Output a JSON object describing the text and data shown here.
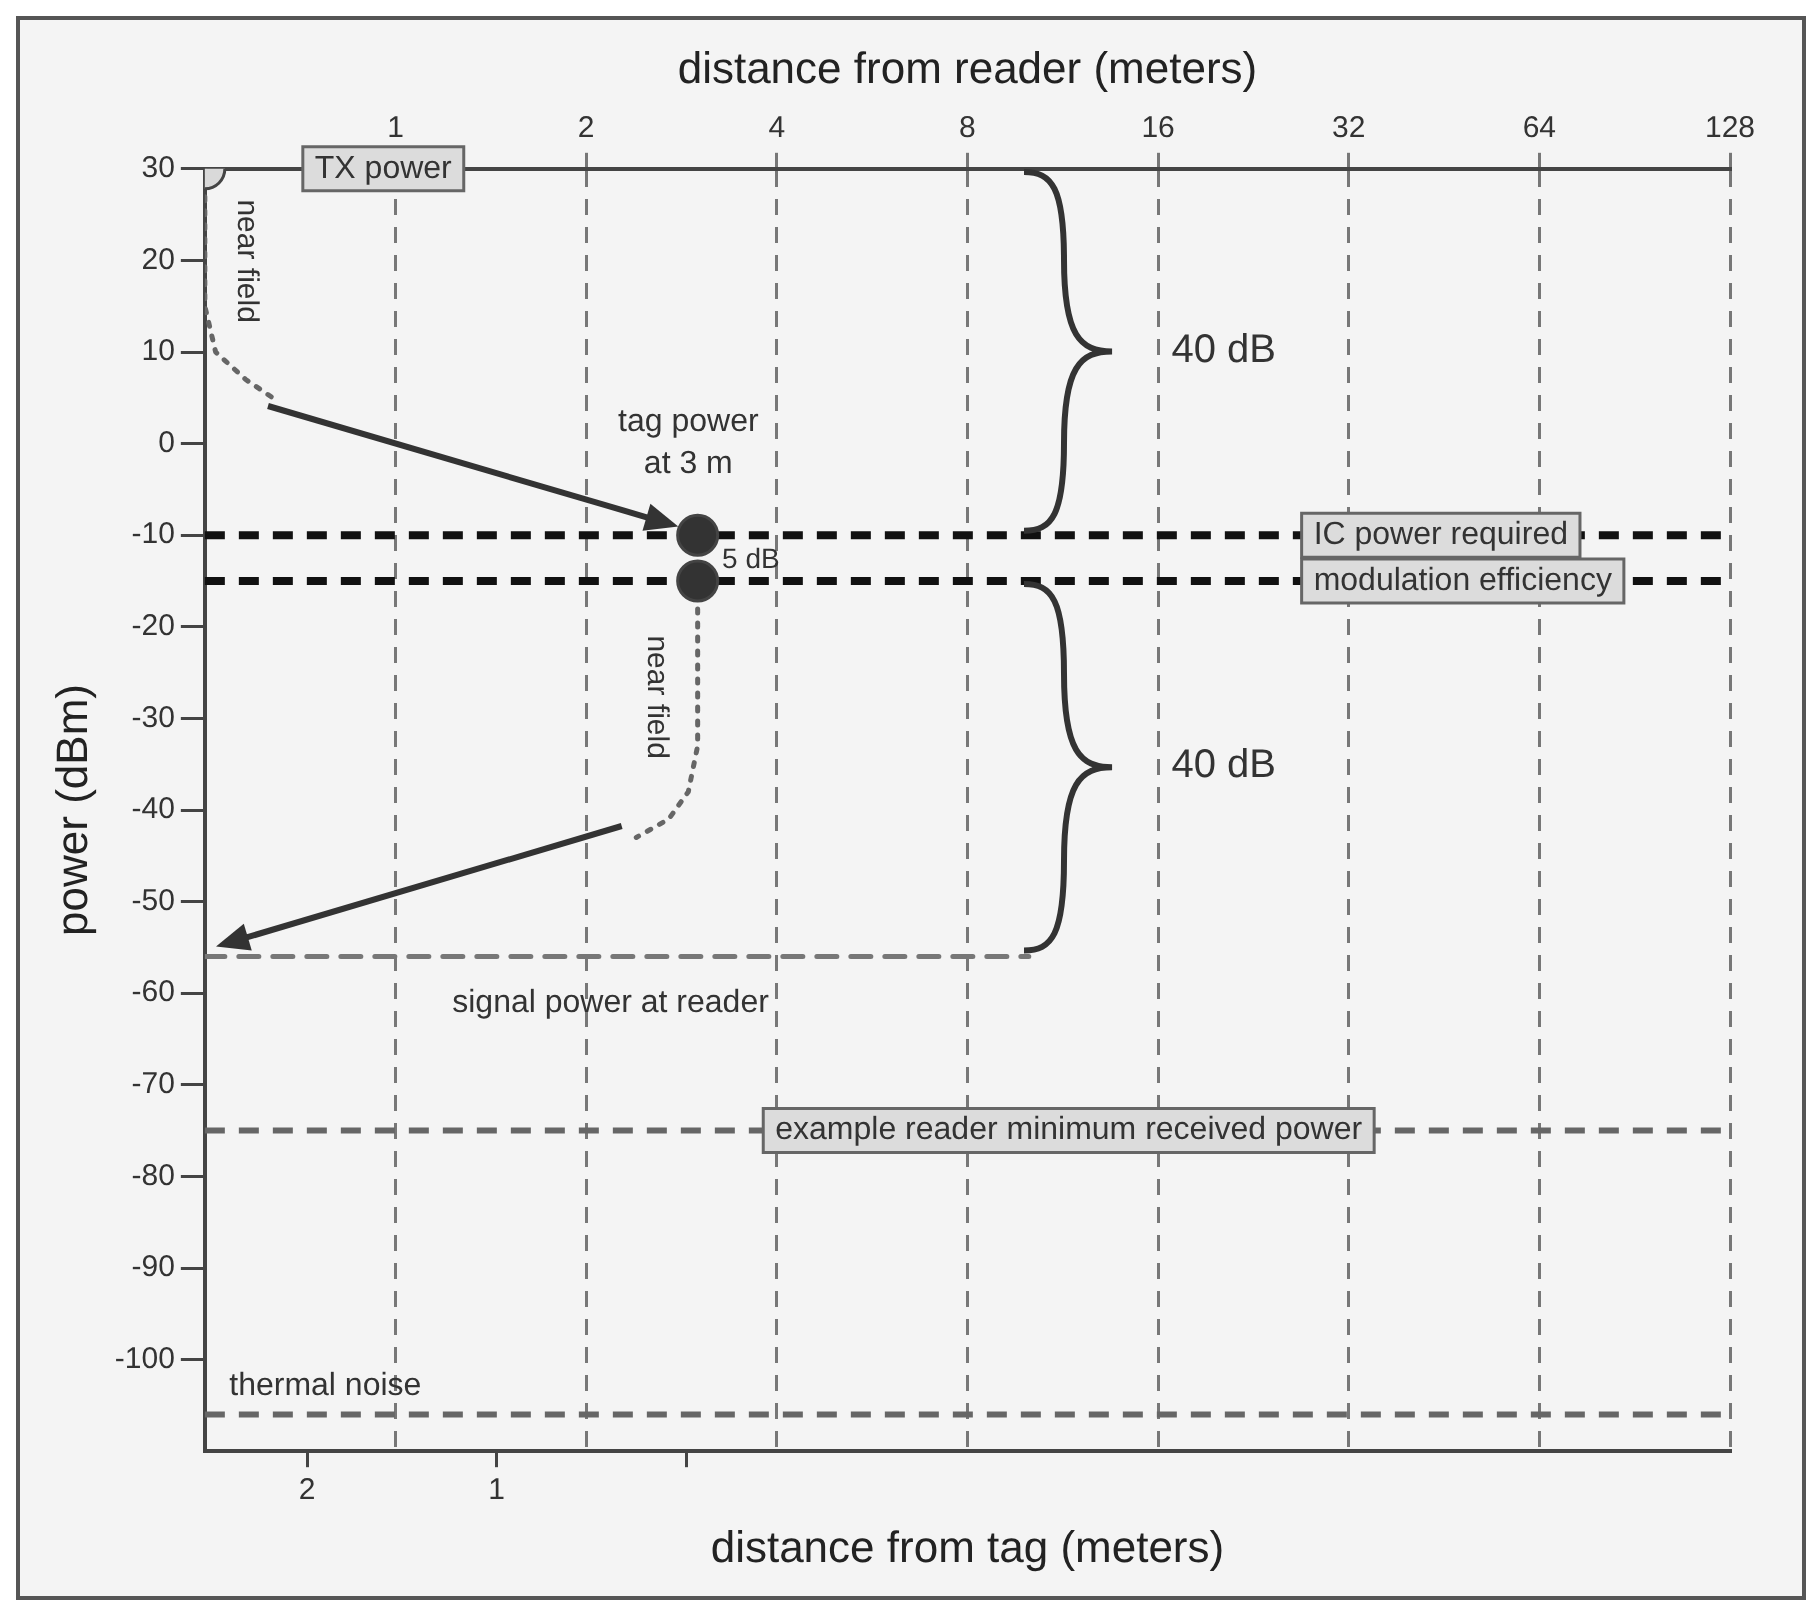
{
  "chart_data": {
    "type": "line",
    "xlabel": "distance from tag (meters)",
    "x2label": "distance from reader (meters)",
    "ylabel": "power (dBm)",
    "xlim": [
      2.54,
      -5.51
    ],
    "xticks": [
      2,
      1,
      {
        "value": 0,
        "label": null
      }
    ],
    "x2lim": [
      0.5,
      128
    ],
    "x2ticks": [
      1,
      2,
      4,
      8,
      16,
      32,
      64,
      128
    ],
    "ylim": [
      -110,
      30
    ],
    "yticks": [
      30,
      20,
      10,
      0,
      -10,
      -20,
      -30,
      -40,
      -50,
      -60,
      -70,
      -80,
      -90,
      -100
    ],
    "log": "x2",
    "grid": "x",
    "legend": false,
    "series": [
      {
        "type": "scatter",
        "axis": "x2",
        "marker": "circle",
        "color": "#d9d9d9",
        "x": [
          0.5
        ],
        "values": [
          30
        ]
      },
      {
        "axis": "x2",
        "marker": "none",
        "line_style": "dotted",
        "color": "#666666",
        "x": [
          0.5,
          0.5,
          0.52,
          0.58,
          0.64
        ],
        "values": [
          30,
          15,
          10,
          7,
          5
        ]
      },
      {
        "type": "scatter",
        "axis": "x2",
        "marker": "circle",
        "color": "#333333",
        "x": [
          3,
          3
        ],
        "values": [
          -10,
          -15
        ]
      },
      {
        "axis": "x2",
        "marker": "none",
        "line_style": "dotted",
        "color": "#666666",
        "x": [
          3,
          3,
          2.9,
          2.7,
          2.4
        ],
        "values": [
          -15,
          -33,
          -38,
          -41,
          -43
        ]
      },
      {
        "axis": "x2",
        "marker": "none",
        "line_style": "dashed",
        "color": "#777777",
        "x": [
          0.5,
          10
        ],
        "values": [
          -56,
          -56
        ]
      }
    ],
    "ref_lines": [
      {
        "axis": "y",
        "value": -10,
        "label": "IC power required",
        "color": "#111111",
        "line_style": "dashed"
      },
      {
        "axis": "y",
        "value": -15,
        "label": "modulation efficiency",
        "color": "#111111",
        "line_style": "dashed"
      },
      {
        "axis": "y",
        "value": -75,
        "label": "example reader minimum received power",
        "color": "#666666",
        "line_style": "dashed"
      },
      {
        "axis": "y",
        "value": -106,
        "label": "thermal noise",
        "color": "#666666",
        "line_style": "dashed"
      }
    ],
    "annotations": [
      "TX power",
      "near field",
      "tag power\nat 3 m",
      "5 dB",
      "near field",
      "40 dB",
      "40 dB",
      "signal power at reader"
    ]
  }
}
